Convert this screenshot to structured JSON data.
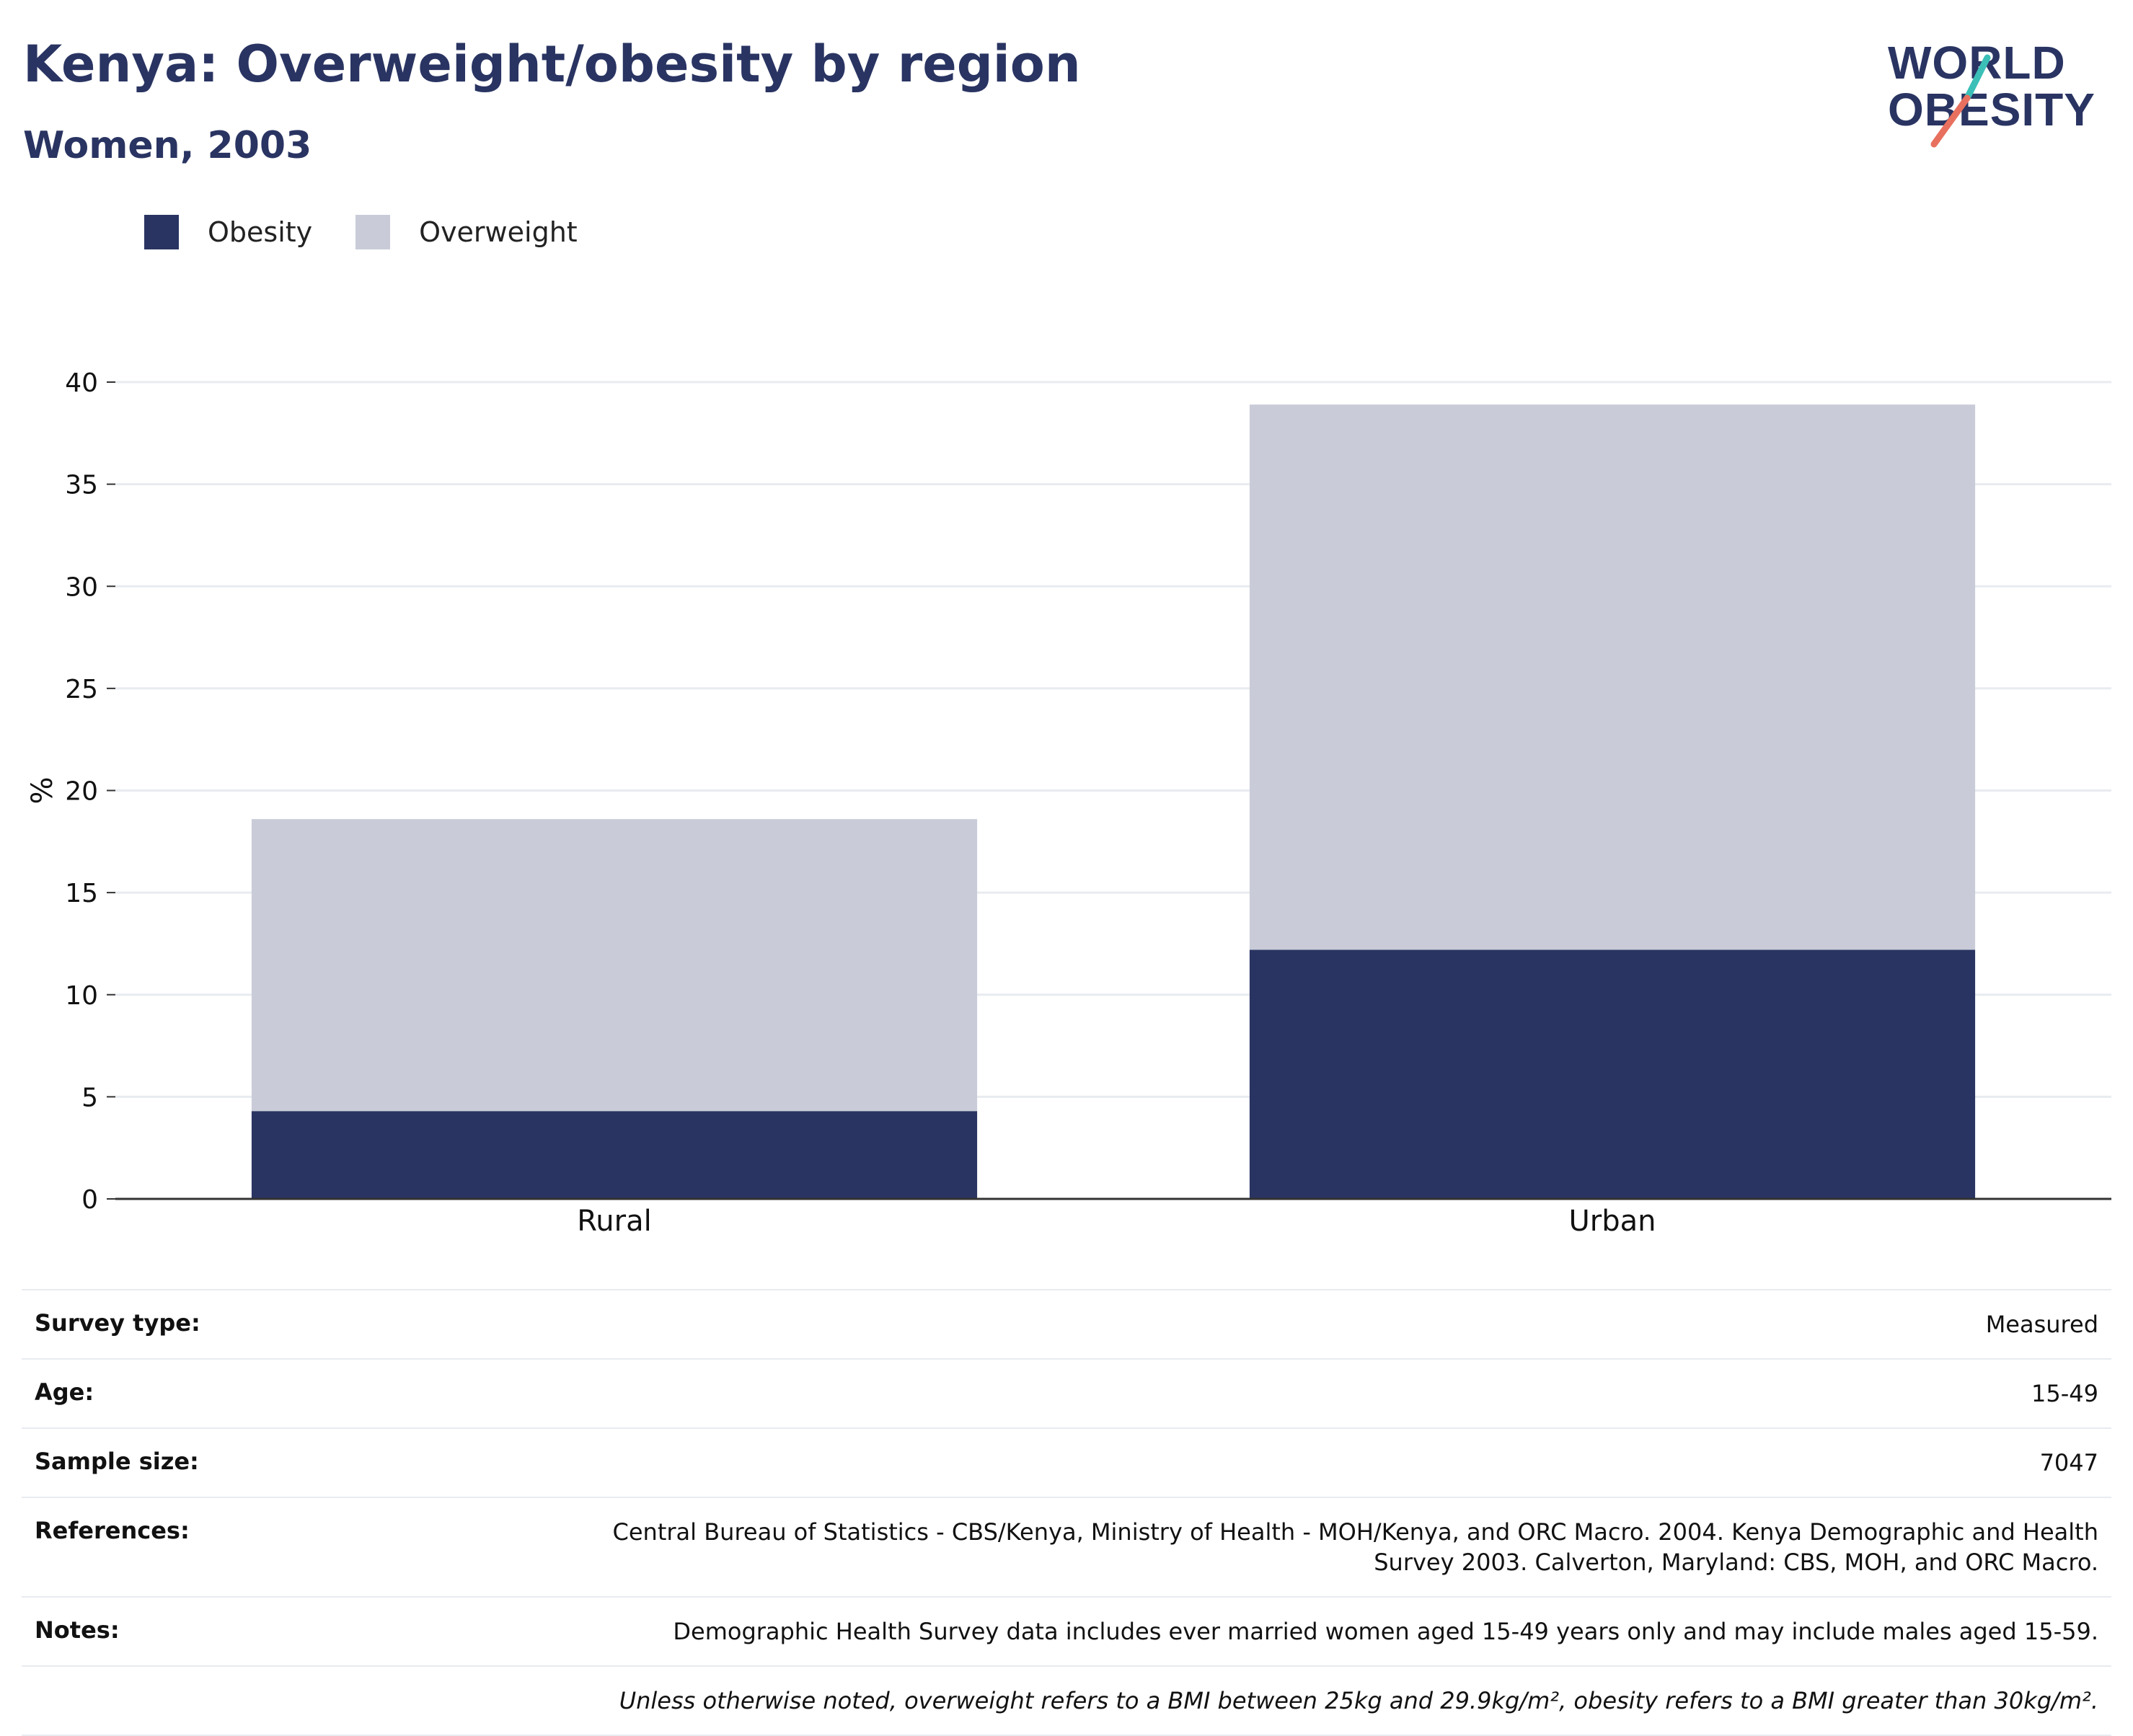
{
  "header": {
    "title": "Kenya: Overweight/obesity by region",
    "subtitle": "Women, 2003"
  },
  "logo": {
    "line1": "WORLD",
    "line2": "OBESITY",
    "accent_teal": "#3bbfb7",
    "accent_coral": "#e8705e"
  },
  "legend": [
    {
      "label": "Obesity",
      "color": "#293462"
    },
    {
      "label": "Overweight",
      "color": "#c9ccd8"
    }
  ],
  "chart_data": {
    "type": "bar",
    "stacked": true,
    "categories": [
      "Rural",
      "Urban"
    ],
    "series": [
      {
        "name": "Obesity",
        "values": [
          4.3,
          12.2
        ],
        "color": "#293462"
      },
      {
        "name": "Overweight",
        "values": [
          14.3,
          26.7
        ],
        "color": "#c9ccd8"
      }
    ],
    "ylabel": "%",
    "ylim": [
      0,
      40
    ],
    "yticks": [
      0,
      5,
      10,
      15,
      20,
      25,
      30,
      35,
      40
    ],
    "grid": true
  },
  "meta": [
    {
      "key": "Survey type:",
      "value": "Measured"
    },
    {
      "key": "Age:",
      "value": "15-49"
    },
    {
      "key": "Sample size:",
      "value": "7047"
    },
    {
      "key": "References:",
      "value": "Central Bureau of Statistics - CBS/Kenya, Ministry of Health - MOH/Kenya, and ORC Macro. 2004. Kenya Demographic and Health Survey 2003. Calverton, Maryland: CBS, MOH, and ORC Macro."
    },
    {
      "key": "Notes:",
      "value": "Demographic Health Survey data includes ever married women aged 15-49 years only and may include males aged 15-59."
    },
    {
      "key": "",
      "value": "Unless otherwise noted, overweight refers to a BMI between 25kg and 29.9kg/m², obesity refers to a BMI greater than 30kg/m²."
    }
  ]
}
